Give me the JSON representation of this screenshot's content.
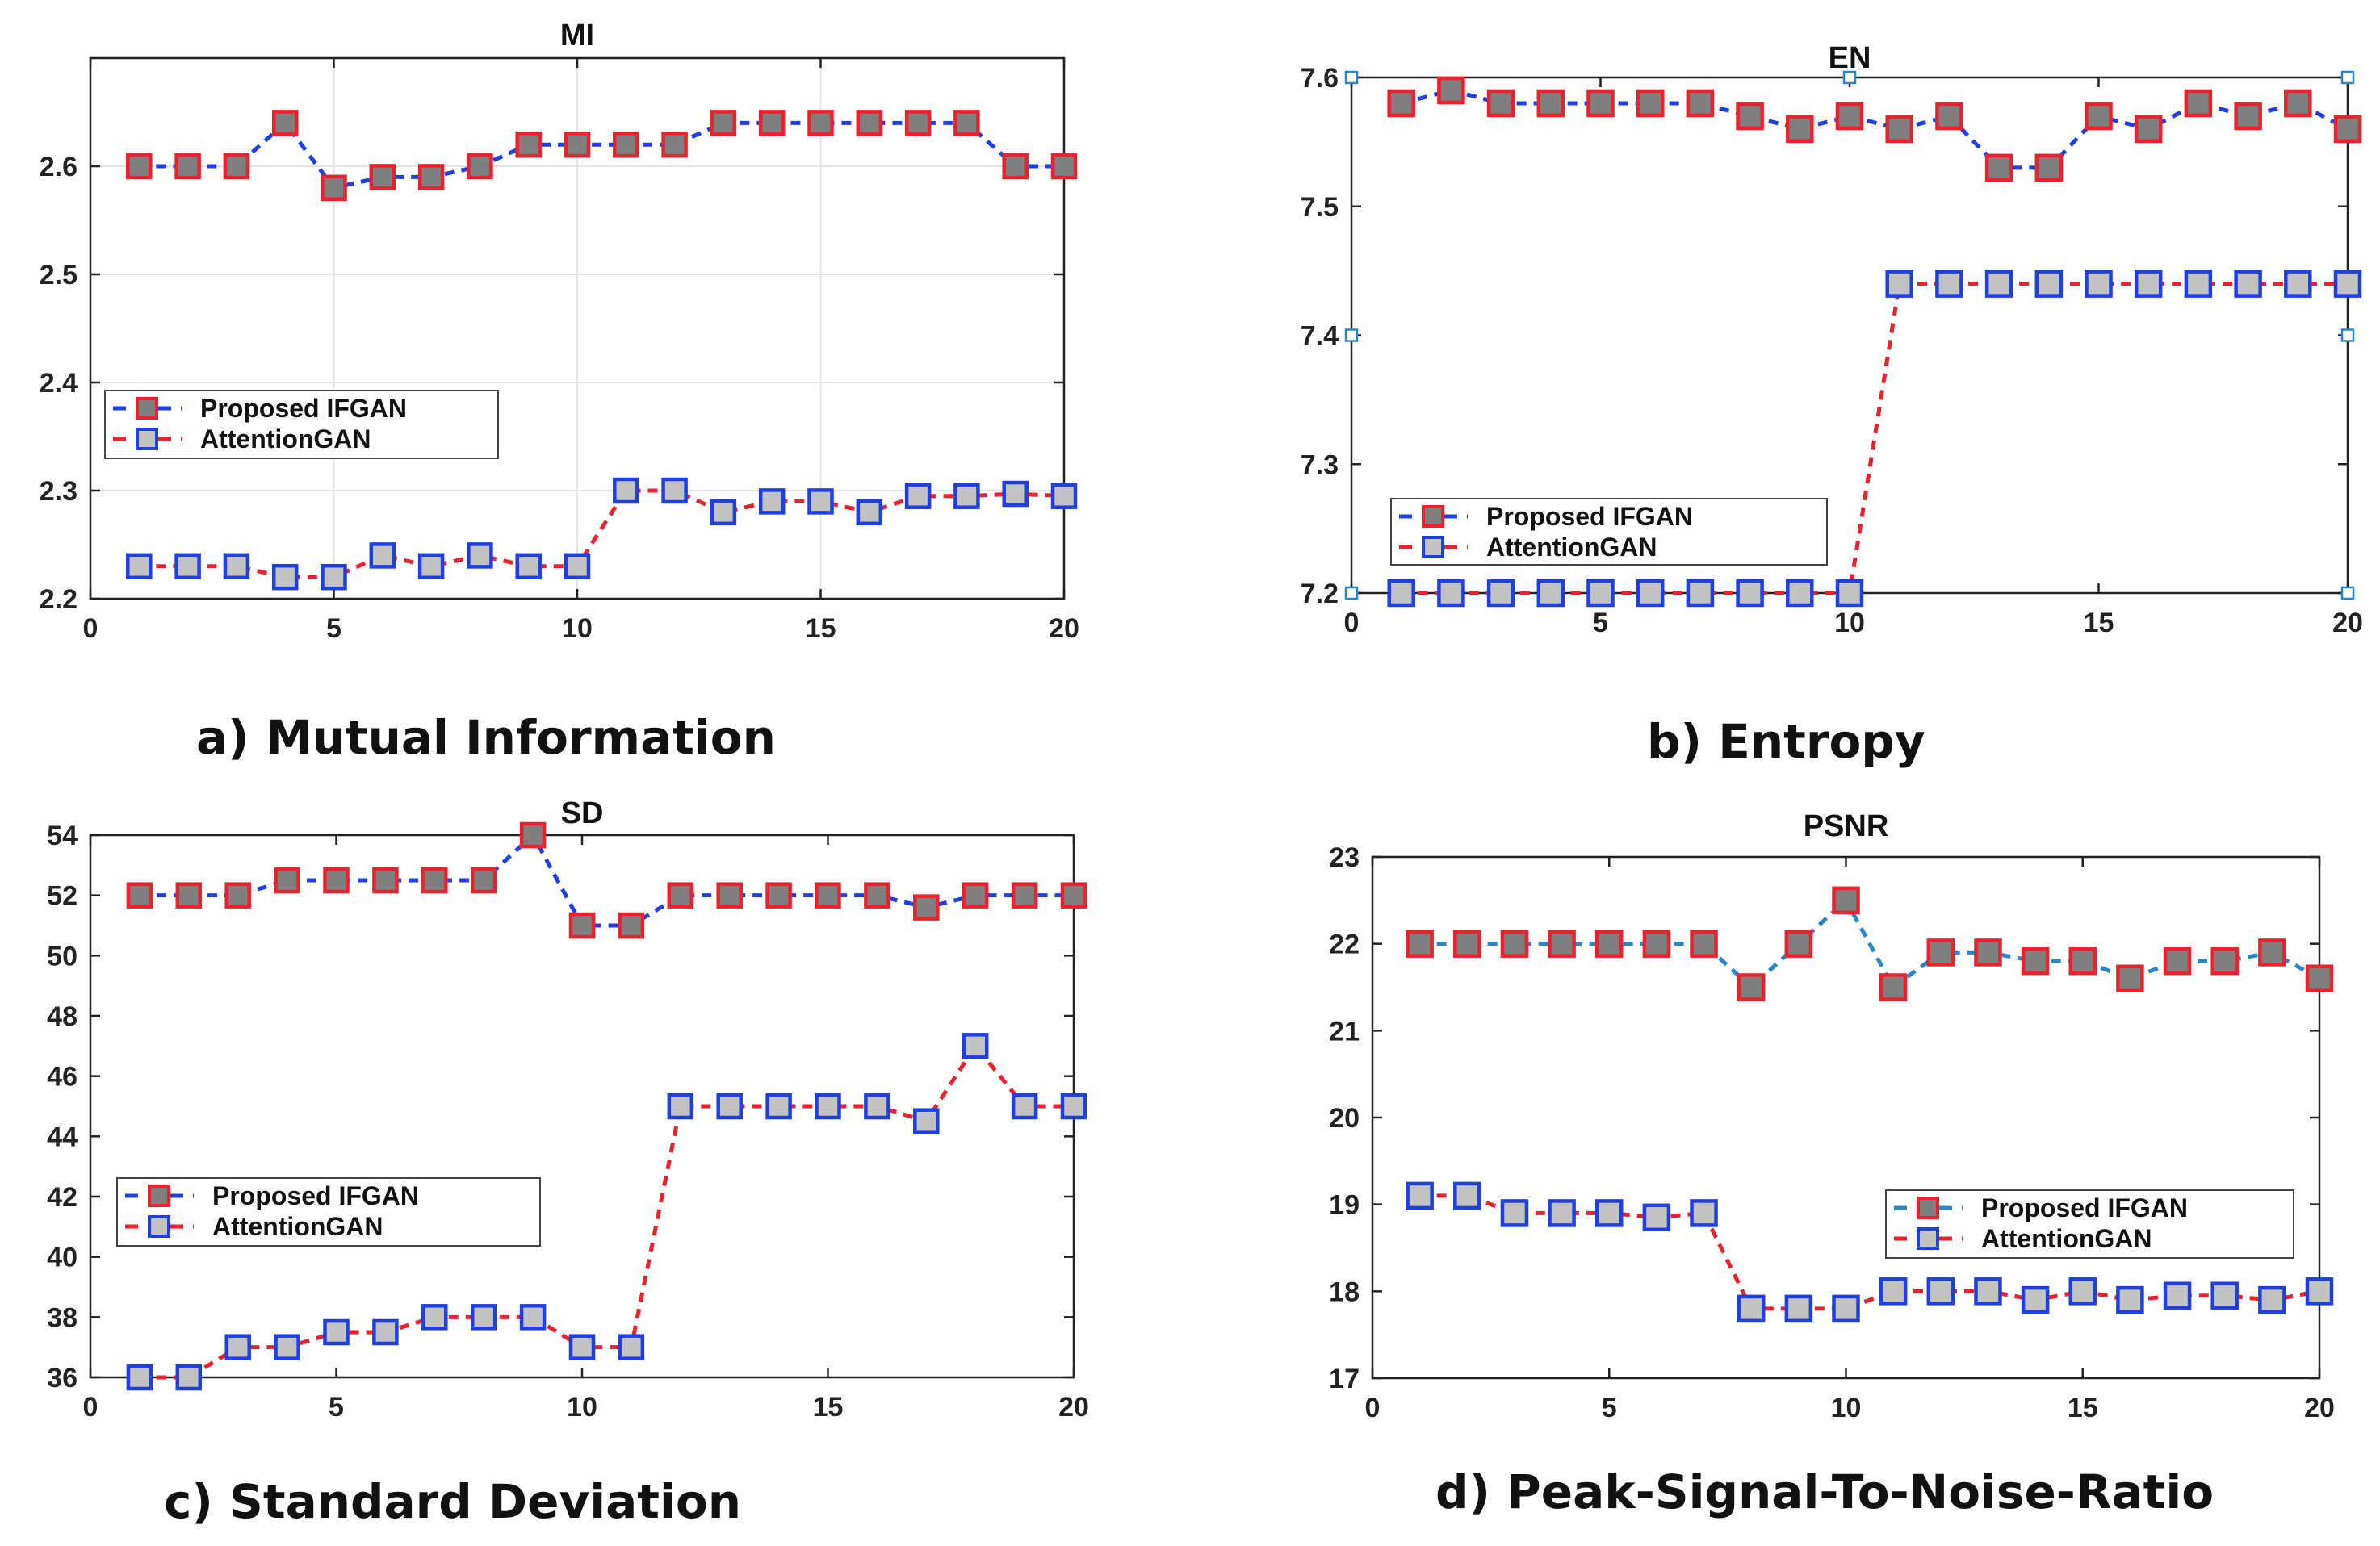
{
  "chart_data": [
    {
      "id": "mi",
      "type": "line",
      "title": "MI",
      "caption": "a) Mutual Information",
      "x": [
        1,
        2,
        3,
        4,
        5,
        6,
        7,
        8,
        9,
        10,
        11,
        12,
        13,
        14,
        15,
        16,
        17,
        18,
        19,
        20
      ],
      "xlim": [
        0,
        20
      ],
      "xticks": [
        0,
        5,
        10,
        15,
        20
      ],
      "ylim": [
        2.2,
        2.7
      ],
      "yticks": [
        2.2,
        2.3,
        2.4,
        2.5,
        2.6
      ],
      "ytick_labels": [
        "2.2",
        "2.3",
        "2.4",
        "2.5",
        "2.6"
      ],
      "grid": true,
      "legend_position": "middle-left",
      "series": [
        {
          "name": "Proposed IFGAN",
          "line_color": "#1f3fe0",
          "marker_face": "#7f7f7f",
          "marker_edge": "#e8222e",
          "values": [
            2.6,
            2.6,
            2.6,
            2.64,
            2.58,
            2.59,
            2.59,
            2.6,
            2.62,
            2.62,
            2.62,
            2.62,
            2.64,
            2.64,
            2.64,
            2.64,
            2.64,
            2.64,
            2.6,
            2.6
          ]
        },
        {
          "name": "AttentionGAN",
          "line_color": "#e8222e",
          "marker_face": "#c2c2c2",
          "marker_edge": "#1f3fe0",
          "values": [
            2.23,
            2.23,
            2.23,
            2.22,
            2.22,
            2.24,
            2.23,
            2.24,
            2.23,
            2.23,
            2.3,
            2.3,
            2.28,
            2.29,
            2.29,
            2.28,
            2.295,
            2.295,
            2.297,
            2.295
          ]
        }
      ]
    },
    {
      "id": "en",
      "type": "line",
      "title": "EN",
      "caption": "b) Entropy",
      "x": [
        1,
        2,
        3,
        4,
        5,
        6,
        7,
        8,
        9,
        10,
        11,
        12,
        13,
        14,
        15,
        16,
        17,
        18,
        19,
        20
      ],
      "xlim": [
        0,
        20
      ],
      "xticks": [
        0,
        5,
        10,
        15,
        20
      ],
      "ylim": [
        7.2,
        7.6
      ],
      "yticks": [
        7.2,
        7.3,
        7.4,
        7.5,
        7.6
      ],
      "ytick_labels": [
        "7.2",
        "7.3",
        "7.4",
        "7.5",
        "7.6"
      ],
      "grid": false,
      "legend_position": "lower-left",
      "series": [
        {
          "name": "Proposed IFGAN",
          "line_color": "#1f3fe0",
          "marker_face": "#7f7f7f",
          "marker_edge": "#e8222e",
          "values": [
            7.58,
            7.59,
            7.58,
            7.58,
            7.58,
            7.58,
            7.58,
            7.57,
            7.56,
            7.57,
            7.56,
            7.57,
            7.53,
            7.53,
            7.57,
            7.56,
            7.58,
            7.57,
            7.58,
            7.56
          ]
        },
        {
          "name": "AttentionGAN",
          "line_color": "#e8222e",
          "marker_face": "#c2c2c2",
          "marker_edge": "#1f3fe0",
          "values": [
            7.2,
            7.2,
            7.2,
            7.2,
            7.2,
            7.2,
            7.2,
            7.2,
            7.2,
            7.2,
            7.44,
            7.44,
            7.44,
            7.44,
            7.44,
            7.44,
            7.44,
            7.44,
            7.44,
            7.44
          ]
        }
      ]
    },
    {
      "id": "sd",
      "type": "line",
      "title": "SD",
      "caption": "c) Standard Deviation",
      "x": [
        1,
        2,
        3,
        4,
        5,
        6,
        7,
        8,
        9,
        10,
        11,
        12,
        13,
        14,
        15,
        16,
        17,
        18,
        19,
        20
      ],
      "xlim": [
        0,
        20
      ],
      "xticks": [
        0,
        5,
        10,
        15,
        20
      ],
      "ylim": [
        36,
        54
      ],
      "yticks": [
        36,
        38,
        40,
        42,
        44,
        46,
        48,
        50,
        52,
        54
      ],
      "ytick_labels": [
        "36",
        "38",
        "40",
        "42",
        "44",
        "46",
        "48",
        "50",
        "52",
        "54"
      ],
      "grid": false,
      "legend_position": "lower-left",
      "series": [
        {
          "name": "Proposed IFGAN",
          "line_color": "#1f3fe0",
          "marker_face": "#7f7f7f",
          "marker_edge": "#e8222e",
          "values": [
            52,
            52,
            52,
            52.5,
            52.5,
            52.5,
            52.5,
            52.5,
            54,
            51,
            51,
            52,
            52,
            52,
            52,
            52,
            51.6,
            52,
            52,
            52
          ]
        },
        {
          "name": "AttentionGAN",
          "line_color": "#e8222e",
          "marker_face": "#c2c2c2",
          "marker_edge": "#1f3fe0",
          "values": [
            36,
            36,
            37,
            37,
            37.5,
            37.5,
            38,
            38,
            38,
            37,
            37,
            45,
            45,
            45,
            45,
            45,
            44.5,
            47,
            45,
            45
          ]
        }
      ]
    },
    {
      "id": "psnr",
      "type": "line",
      "title": "PSNR",
      "caption": "d) Peak-Signal-To-Noise-Ratio",
      "x": [
        1,
        2,
        3,
        4,
        5,
        6,
        7,
        8,
        9,
        10,
        11,
        12,
        13,
        14,
        15,
        16,
        17,
        18,
        19,
        20
      ],
      "xlim": [
        0,
        20
      ],
      "xticks": [
        0,
        5,
        10,
        15,
        20
      ],
      "ylim": [
        17,
        23
      ],
      "yticks": [
        17,
        18,
        19,
        20,
        21,
        22,
        23
      ],
      "ytick_labels": [
        "17",
        "18",
        "19",
        "20",
        "21",
        "22",
        "23"
      ],
      "grid": false,
      "legend_position": "lower-right",
      "series": [
        {
          "name": "Proposed IFGAN",
          "line_color": "#2a86c4",
          "marker_face": "#7f7f7f",
          "marker_edge": "#e8222e",
          "values": [
            22,
            22,
            22,
            22,
            22,
            22,
            22,
            21.5,
            22,
            22.5,
            21.5,
            21.9,
            21.9,
            21.8,
            21.8,
            21.6,
            21.8,
            21.8,
            21.9,
            21.6
          ]
        },
        {
          "name": "AttentionGAN",
          "line_color": "#e8222e",
          "marker_face": "#c2c2c2",
          "marker_edge": "#1f3fe0",
          "values": [
            19.1,
            19.1,
            18.9,
            18.9,
            18.9,
            18.85,
            18.9,
            17.8,
            17.8,
            17.8,
            18,
            18,
            18,
            17.9,
            18,
            17.9,
            17.95,
            17.95,
            17.9,
            18
          ]
        }
      ]
    }
  ]
}
